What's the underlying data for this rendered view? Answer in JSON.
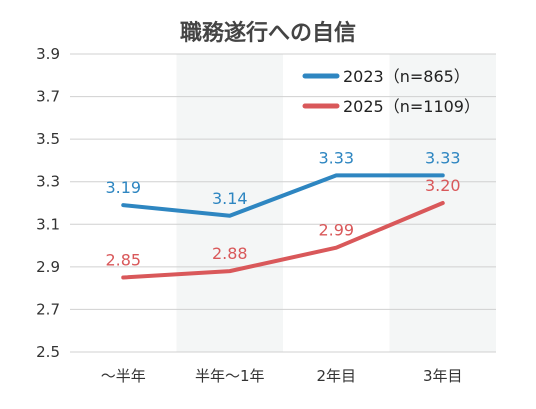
{
  "chart_data": {
    "type": "line",
    "title": "職務遂行への自信",
    "categories": [
      "〜半年",
      "半年〜1年",
      "2年目",
      "3年目"
    ],
    "ylim": [
      2.5,
      3.9
    ],
    "yticks": [
      "2.5",
      "2.7",
      "2.9",
      "3.1",
      "3.3",
      "3.5",
      "3.7",
      "3.9"
    ],
    "grid": true,
    "legend_position": "top-right",
    "series": [
      {
        "name": "2023（n=865）",
        "values": [
          3.19,
          3.14,
          3.33,
          3.33
        ],
        "labels": [
          "3.19",
          "3.14",
          "3.33",
          "3.33"
        ],
        "color": "#2E86C1"
      },
      {
        "name": "2025（n=1109）",
        "values": [
          2.85,
          2.88,
          2.99,
          3.2
        ],
        "labels": [
          "2.85",
          "2.88",
          "2.99",
          "3.20"
        ],
        "color": "#D9585A"
      }
    ],
    "band_color": "#F4F6F6",
    "grid_color": "#D0D0D0"
  }
}
